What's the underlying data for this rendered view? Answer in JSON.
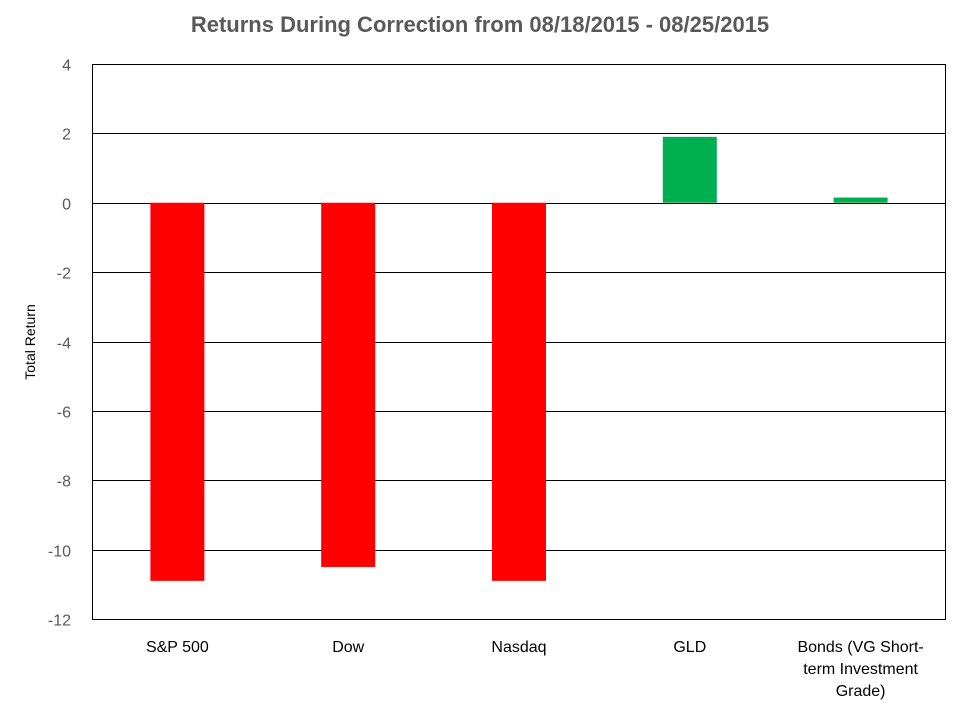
{
  "chart_data": {
    "type": "bar",
    "title": "Returns During Correction from 08/18/2015 - 08/25/2015",
    "xlabel": "",
    "ylabel": "Total Return",
    "categories": [
      "S&P 500",
      "Dow",
      "Nasdaq",
      "GLD",
      "Bonds (VG Short-term Investment Grade)"
    ],
    "category_lines": [
      [
        "S&P 500"
      ],
      [
        "Dow"
      ],
      [
        "Nasdaq"
      ],
      [
        "GLD"
      ],
      [
        "Bonds (VG Short-",
        "term Investment",
        "Grade)"
      ]
    ],
    "values": [
      -10.9,
      -10.5,
      -10.9,
      1.9,
      0.15
    ],
    "ylim": [
      -12,
      4
    ],
    "yticks": [
      4,
      2,
      0,
      -2,
      -4,
      -6,
      -8,
      -10,
      -12
    ],
    "grid": true,
    "legend": "none",
    "colors": {
      "positive": "#00B050",
      "negative": "#FF0000",
      "grid": "#000000",
      "text": "#595959"
    }
  }
}
